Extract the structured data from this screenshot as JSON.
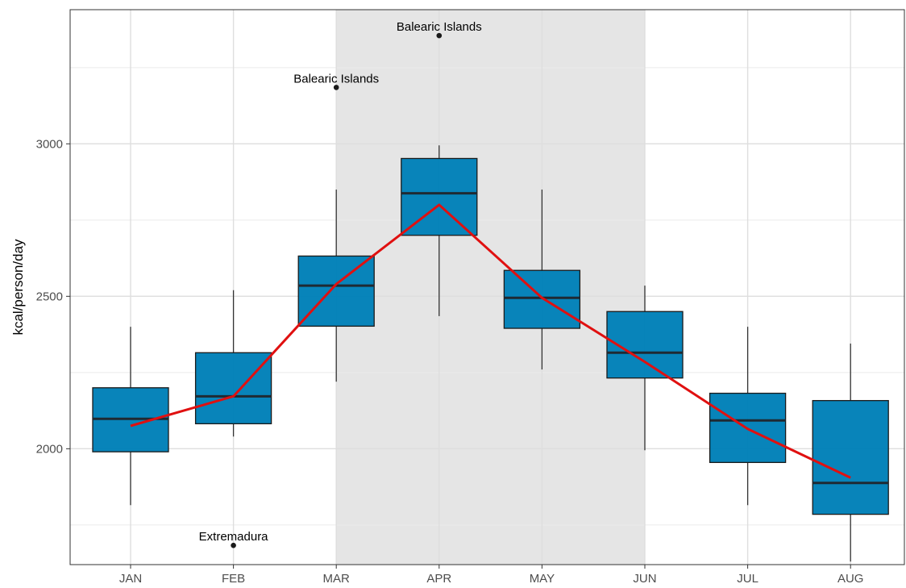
{
  "chart_data": {
    "type": "box",
    "title": "",
    "xlabel": "",
    "ylabel": "kcal/person/day",
    "categories": [
      "JAN",
      "FEB",
      "MAR",
      "APR",
      "MAY",
      "JUN",
      "JUL",
      "AUG"
    ],
    "ylim": [
      1620,
      3440
    ],
    "yticks": [
      2000,
      2500,
      3000
    ],
    "grid": true,
    "shaded_range": [
      "MAR",
      "JUN"
    ],
    "box_color": "#0080b8",
    "line_color": "#e01010",
    "boxes": [
      {
        "category": "JAN",
        "whisker_low": 1815,
        "q1": 1990,
        "median": 2098,
        "q3": 2200,
        "whisker_high": 2400
      },
      {
        "category": "FEB",
        "whisker_low": 2040,
        "q1": 2082,
        "median": 2172,
        "q3": 2315,
        "whisker_high": 2520
      },
      {
        "category": "MAR",
        "whisker_low": 2220,
        "q1": 2402,
        "median": 2535,
        "q3": 2632,
        "whisker_high": 2850
      },
      {
        "category": "APR",
        "whisker_low": 2435,
        "q1": 2700,
        "median": 2838,
        "q3": 2952,
        "whisker_high": 2995
      },
      {
        "category": "MAY",
        "whisker_low": 2260,
        "q1": 2395,
        "median": 2495,
        "q3": 2585,
        "whisker_high": 2850
      },
      {
        "category": "JUN",
        "whisker_low": 1995,
        "q1": 2232,
        "median": 2315,
        "q3": 2450,
        "whisker_high": 2535
      },
      {
        "category": "JUL",
        "whisker_low": 1815,
        "q1": 1955,
        "median": 2093,
        "q3": 2182,
        "whisker_high": 2400
      },
      {
        "category": "AUG",
        "whisker_low": 1630,
        "q1": 1785,
        "median": 1888,
        "q3": 2158,
        "whisker_high": 2345
      }
    ],
    "mean_line": {
      "categories": [
        "JAN",
        "FEB",
        "MAR",
        "APR",
        "MAY",
        "JUN",
        "JUL",
        "AUG"
      ],
      "values": [
        2075,
        2172,
        2540,
        2800,
        2495,
        2285,
        2065,
        1905
      ]
    },
    "outliers": [
      {
        "category": "FEB",
        "value": 1683,
        "label": "Extremadura"
      },
      {
        "category": "MAR",
        "value": 3185,
        "label": "Balearic Islands"
      },
      {
        "category": "APR",
        "value": 3355,
        "label": "Balearic Islands"
      }
    ]
  }
}
